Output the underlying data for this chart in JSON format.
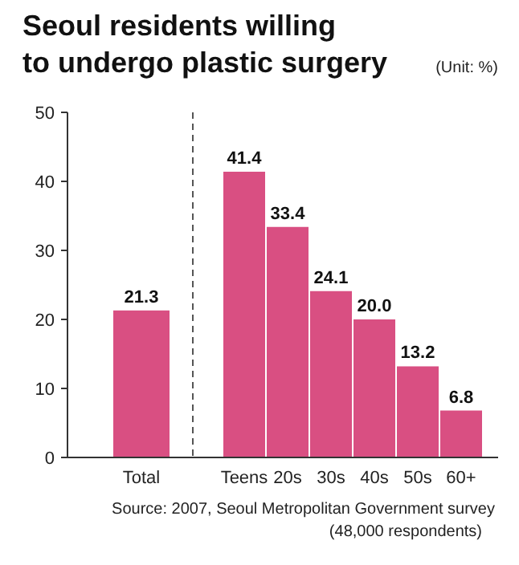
{
  "chart_data": {
    "type": "bar",
    "title": "Seoul residents willing\nto undergo plastic surgery",
    "subtitle": "(Unit: %)",
    "categories": [
      "Total",
      "Teens",
      "20s",
      "30s",
      "40s",
      "50s",
      "60+"
    ],
    "values": [
      21.3,
      41.4,
      33.4,
      24.1,
      20.0,
      13.2,
      6.8
    ],
    "value_labels": [
      "21.3",
      "41.4",
      "33.4",
      "24.1",
      "20.0",
      "13.2",
      "6.8"
    ],
    "color": "#d94f82",
    "ylim": [
      0,
      50
    ],
    "yticks": [
      0,
      10,
      20,
      30,
      40,
      50
    ],
    "grid": false,
    "annotations": [
      "Source: 2007, Seoul Metropolitan Government survey",
      "(48,000 respondents)"
    ]
  }
}
